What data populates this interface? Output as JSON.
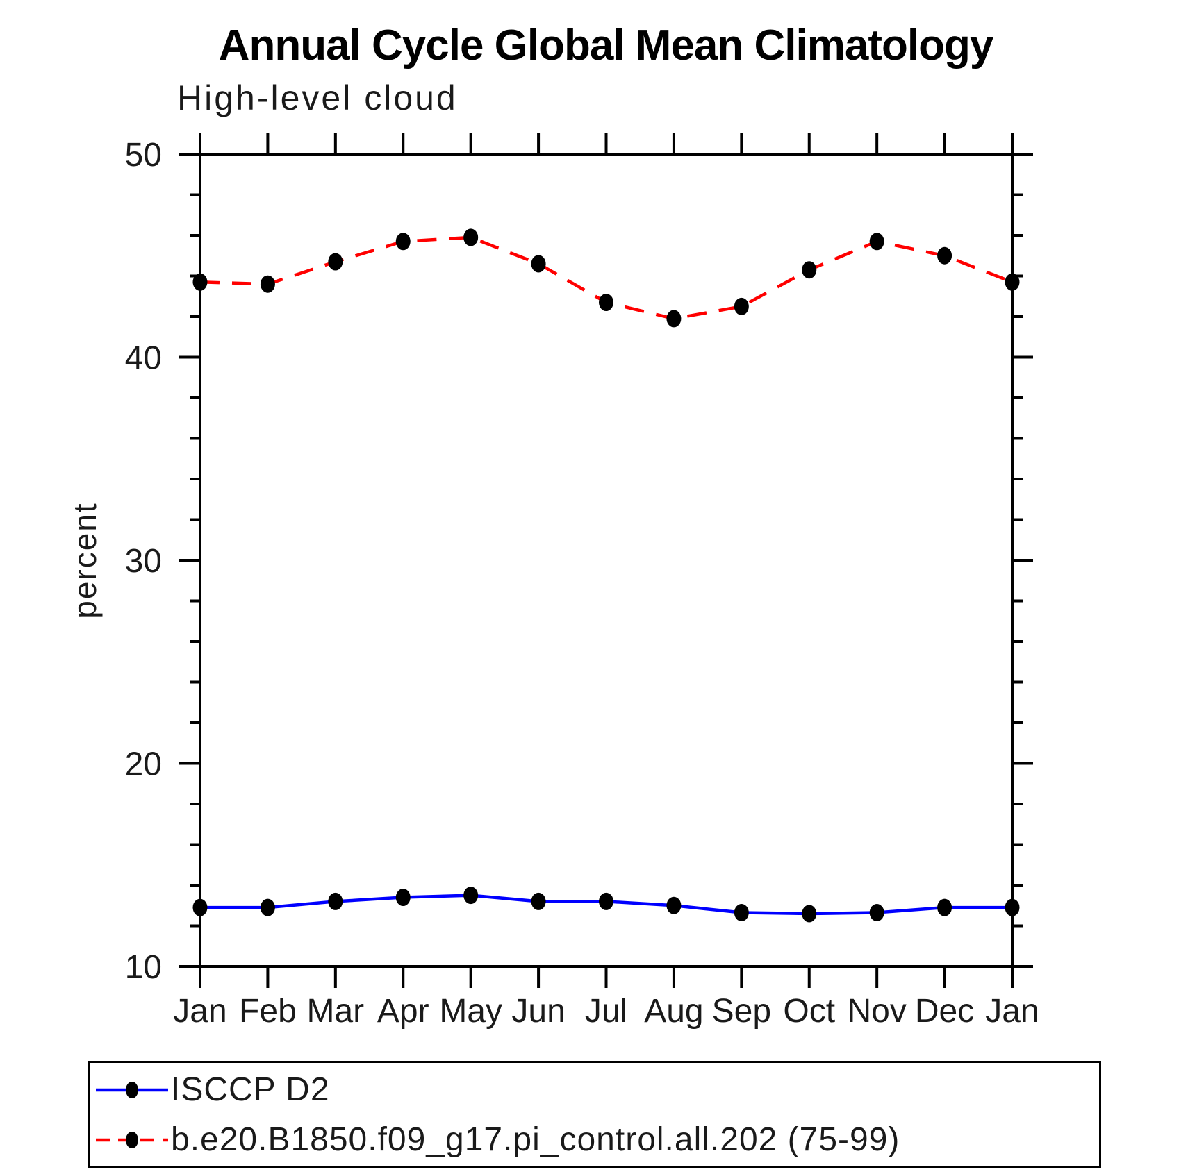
{
  "page": {
    "background": "#ffffff"
  },
  "chart_data": {
    "type": "line",
    "title": "Annual Cycle Global Mean Climatology",
    "subtitle": "High-level cloud",
    "ylabel": "percent",
    "xlabel": "",
    "categories": [
      "Jan",
      "Feb",
      "Mar",
      "Apr",
      "May",
      "Jun",
      "Jul",
      "Aug",
      "Sep",
      "Oct",
      "Nov",
      "Dec",
      "Jan"
    ],
    "ylim": [
      10,
      50
    ],
    "y_major_ticks": [
      10,
      20,
      30,
      40,
      50
    ],
    "y_minor_tick_interval": 2,
    "grid": false,
    "legend_position": "bottom",
    "series": [
      {
        "name": "ISCCP D2",
        "color": "#0000ff",
        "style": "solid",
        "marker": "filled-circle",
        "marker_color": "#000000",
        "values": [
          12.9,
          12.9,
          13.2,
          13.4,
          13.5,
          13.2,
          13.2,
          13.0,
          12.65,
          12.6,
          12.65,
          12.9,
          12.9
        ]
      },
      {
        "name": "b.e20.B1850.f09_g17.pi_control.all.202 (75-99)",
        "color": "#ff0000",
        "style": "dashed",
        "marker": "filled-circle",
        "marker_color": "#000000",
        "values": [
          43.7,
          43.6,
          44.7,
          45.7,
          45.9,
          44.6,
          42.7,
          41.9,
          42.5,
          44.3,
          45.7,
          45.0,
          43.7
        ]
      }
    ]
  }
}
